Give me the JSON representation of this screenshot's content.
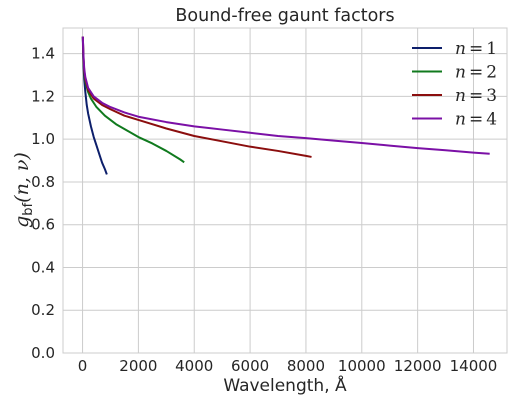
{
  "chart_data": {
    "type": "line",
    "title": "Bound-free gaunt factors",
    "xlabel": "Wavelength, Å",
    "ylabel": "g_bf(n, ν)",
    "ylabel_main": "g",
    "ylabel_sub": "bf",
    "ylabel_args": "(n, ν)",
    "xlim": [
      -700,
      15200
    ],
    "ylim": [
      0.0,
      1.52
    ],
    "xticks": [
      0,
      2000,
      4000,
      6000,
      8000,
      10000,
      12000,
      14000
    ],
    "yticks": [
      0.0,
      0.2,
      0.4,
      0.6,
      0.8,
      1.0,
      1.2,
      1.4
    ],
    "ytick_labels": [
      "0.0",
      "0.2",
      "0.4",
      "0.6",
      "0.8",
      "1.0",
      "1.2",
      "1.4"
    ],
    "grid": true,
    "legend_position": "top-right",
    "series": [
      {
        "name": "n = 1",
        "label_var": "n",
        "label_op": "=",
        "label_val": "1",
        "color": "#0d1f6b",
        "x": [
          10,
          20,
          40,
          60,
          100,
          150,
          200,
          300,
          400,
          500,
          600,
          700,
          800,
          870
        ],
        "y": [
          1.48,
          1.4,
          1.33,
          1.28,
          1.22,
          1.16,
          1.12,
          1.06,
          1.01,
          0.97,
          0.93,
          0.89,
          0.86,
          0.835
        ]
      },
      {
        "name": "n = 2",
        "label_var": "n",
        "label_op": "=",
        "label_val": "2",
        "color": "#107a1e",
        "x": [
          10,
          30,
          60,
          100,
          200,
          300,
          500,
          800,
          1200,
          1600,
          2000,
          2500,
          3000,
          3500,
          3640
        ],
        "y": [
          1.48,
          1.38,
          1.31,
          1.27,
          1.22,
          1.19,
          1.15,
          1.11,
          1.07,
          1.04,
          1.01,
          0.98,
          0.945,
          0.905,
          0.892
        ]
      },
      {
        "name": "n = 3",
        "label_var": "n",
        "label_op": "=",
        "label_val": "3",
        "color": "#8b0e0e",
        "x": [
          10,
          30,
          60,
          100,
          200,
          400,
          700,
          1000,
          1500,
          2000,
          3000,
          4000,
          5000,
          6000,
          7000,
          8000,
          8200
        ],
        "y": [
          1.48,
          1.39,
          1.32,
          1.28,
          1.23,
          1.19,
          1.16,
          1.14,
          1.11,
          1.09,
          1.05,
          1.015,
          0.99,
          0.965,
          0.945,
          0.922,
          0.917
        ]
      },
      {
        "name": "n = 4",
        "label_var": "n",
        "label_op": "=",
        "label_val": "4",
        "color": "#7b10a6",
        "x": [
          10,
          30,
          60,
          100,
          200,
          400,
          700,
          1000,
          1500,
          2000,
          3000,
          4000,
          5000,
          6000,
          7000,
          8000,
          9000,
          10000,
          11000,
          12000,
          13000,
          14000,
          14580
        ],
        "y": [
          1.48,
          1.4,
          1.33,
          1.29,
          1.24,
          1.2,
          1.17,
          1.15,
          1.125,
          1.105,
          1.08,
          1.06,
          1.045,
          1.03,
          1.015,
          1.005,
          0.993,
          0.982,
          0.97,
          0.958,
          0.948,
          0.937,
          0.932
        ]
      }
    ]
  }
}
